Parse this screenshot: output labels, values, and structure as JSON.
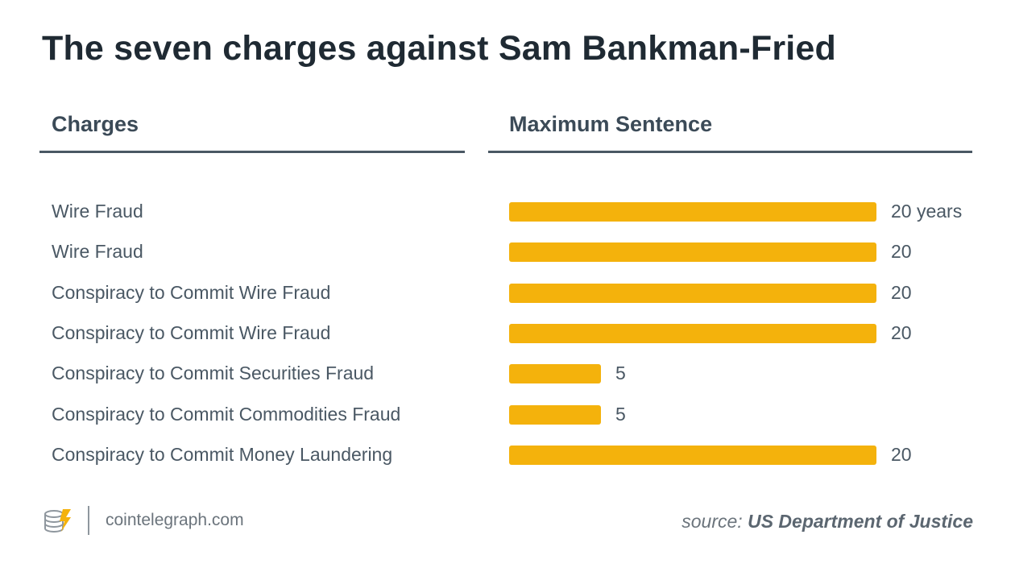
{
  "chart_data": {
    "type": "bar",
    "title": "The seven charges against Sam Bankman-Fried",
    "column_headers": {
      "label": "Charges",
      "value": "Maximum Sentence"
    },
    "categories": [
      "Wire Fraud",
      "Wire Fraud",
      "Conspiracy to Commit Wire Fraud",
      "Conspiracy to Commit Wire Fraud",
      "Conspiracy to Commit Securities Fraud",
      "Conspiracy to Commit Commodities Fraud",
      "Conspiracy to Commit Money Laundering"
    ],
    "values": [
      20,
      20,
      20,
      20,
      5,
      5,
      20
    ],
    "value_labels": [
      "20 years",
      "20",
      "20",
      "20",
      "5",
      "5",
      "20"
    ],
    "xlim": [
      0,
      20
    ],
    "bar_color": "#f4b20c"
  },
  "footer": {
    "site": "cointelegraph.com",
    "source_prefix": "source:",
    "source_org": "US Department of Justice",
    "logo_icon": "cointelegraph-logo-icon"
  }
}
